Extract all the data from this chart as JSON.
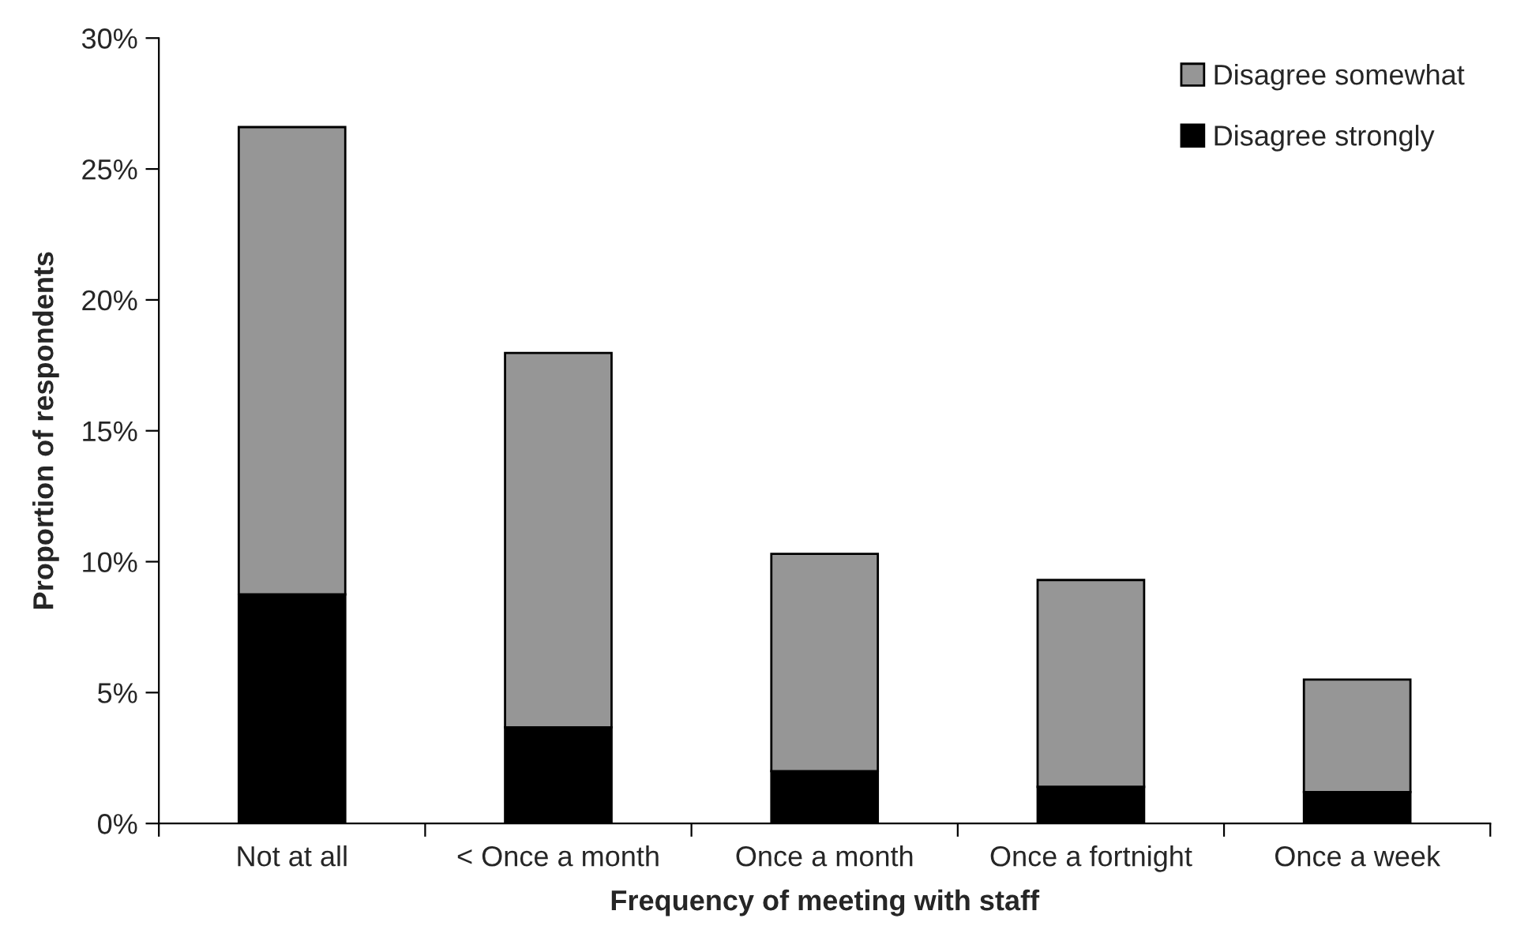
{
  "chart_data": {
    "type": "bar",
    "stacked": true,
    "xlabel": "Frequency of meeting with staff",
    "ylabel": "Proportion of respondents",
    "categories": [
      "Not at all",
      "< Once a month",
      "Once a month",
      "Once a fortnight",
      "Once a week"
    ],
    "series": [
      {
        "name": "Disagree strongly",
        "color": "#000000",
        "values": [
          8.75,
          3.67,
          2.0,
          1.4,
          1.2
        ]
      },
      {
        "name": "Disagree somewhat",
        "color": "#969696",
        "values": [
          17.85,
          14.3,
          8.3,
          7.9,
          4.3
        ]
      }
    ],
    "ylim": [
      0,
      30
    ],
    "yticks": [
      {
        "value": 0,
        "label": "0%"
      },
      {
        "value": 5,
        "label": "5%"
      },
      {
        "value": 10,
        "label": "10%"
      },
      {
        "value": 15,
        "label": "15%"
      },
      {
        "value": 20,
        "label": "20%"
      },
      {
        "value": 25,
        "label": "25%"
      },
      {
        "value": 30,
        "label": "30%"
      }
    ],
    "legend": "top right",
    "grid": false
  }
}
